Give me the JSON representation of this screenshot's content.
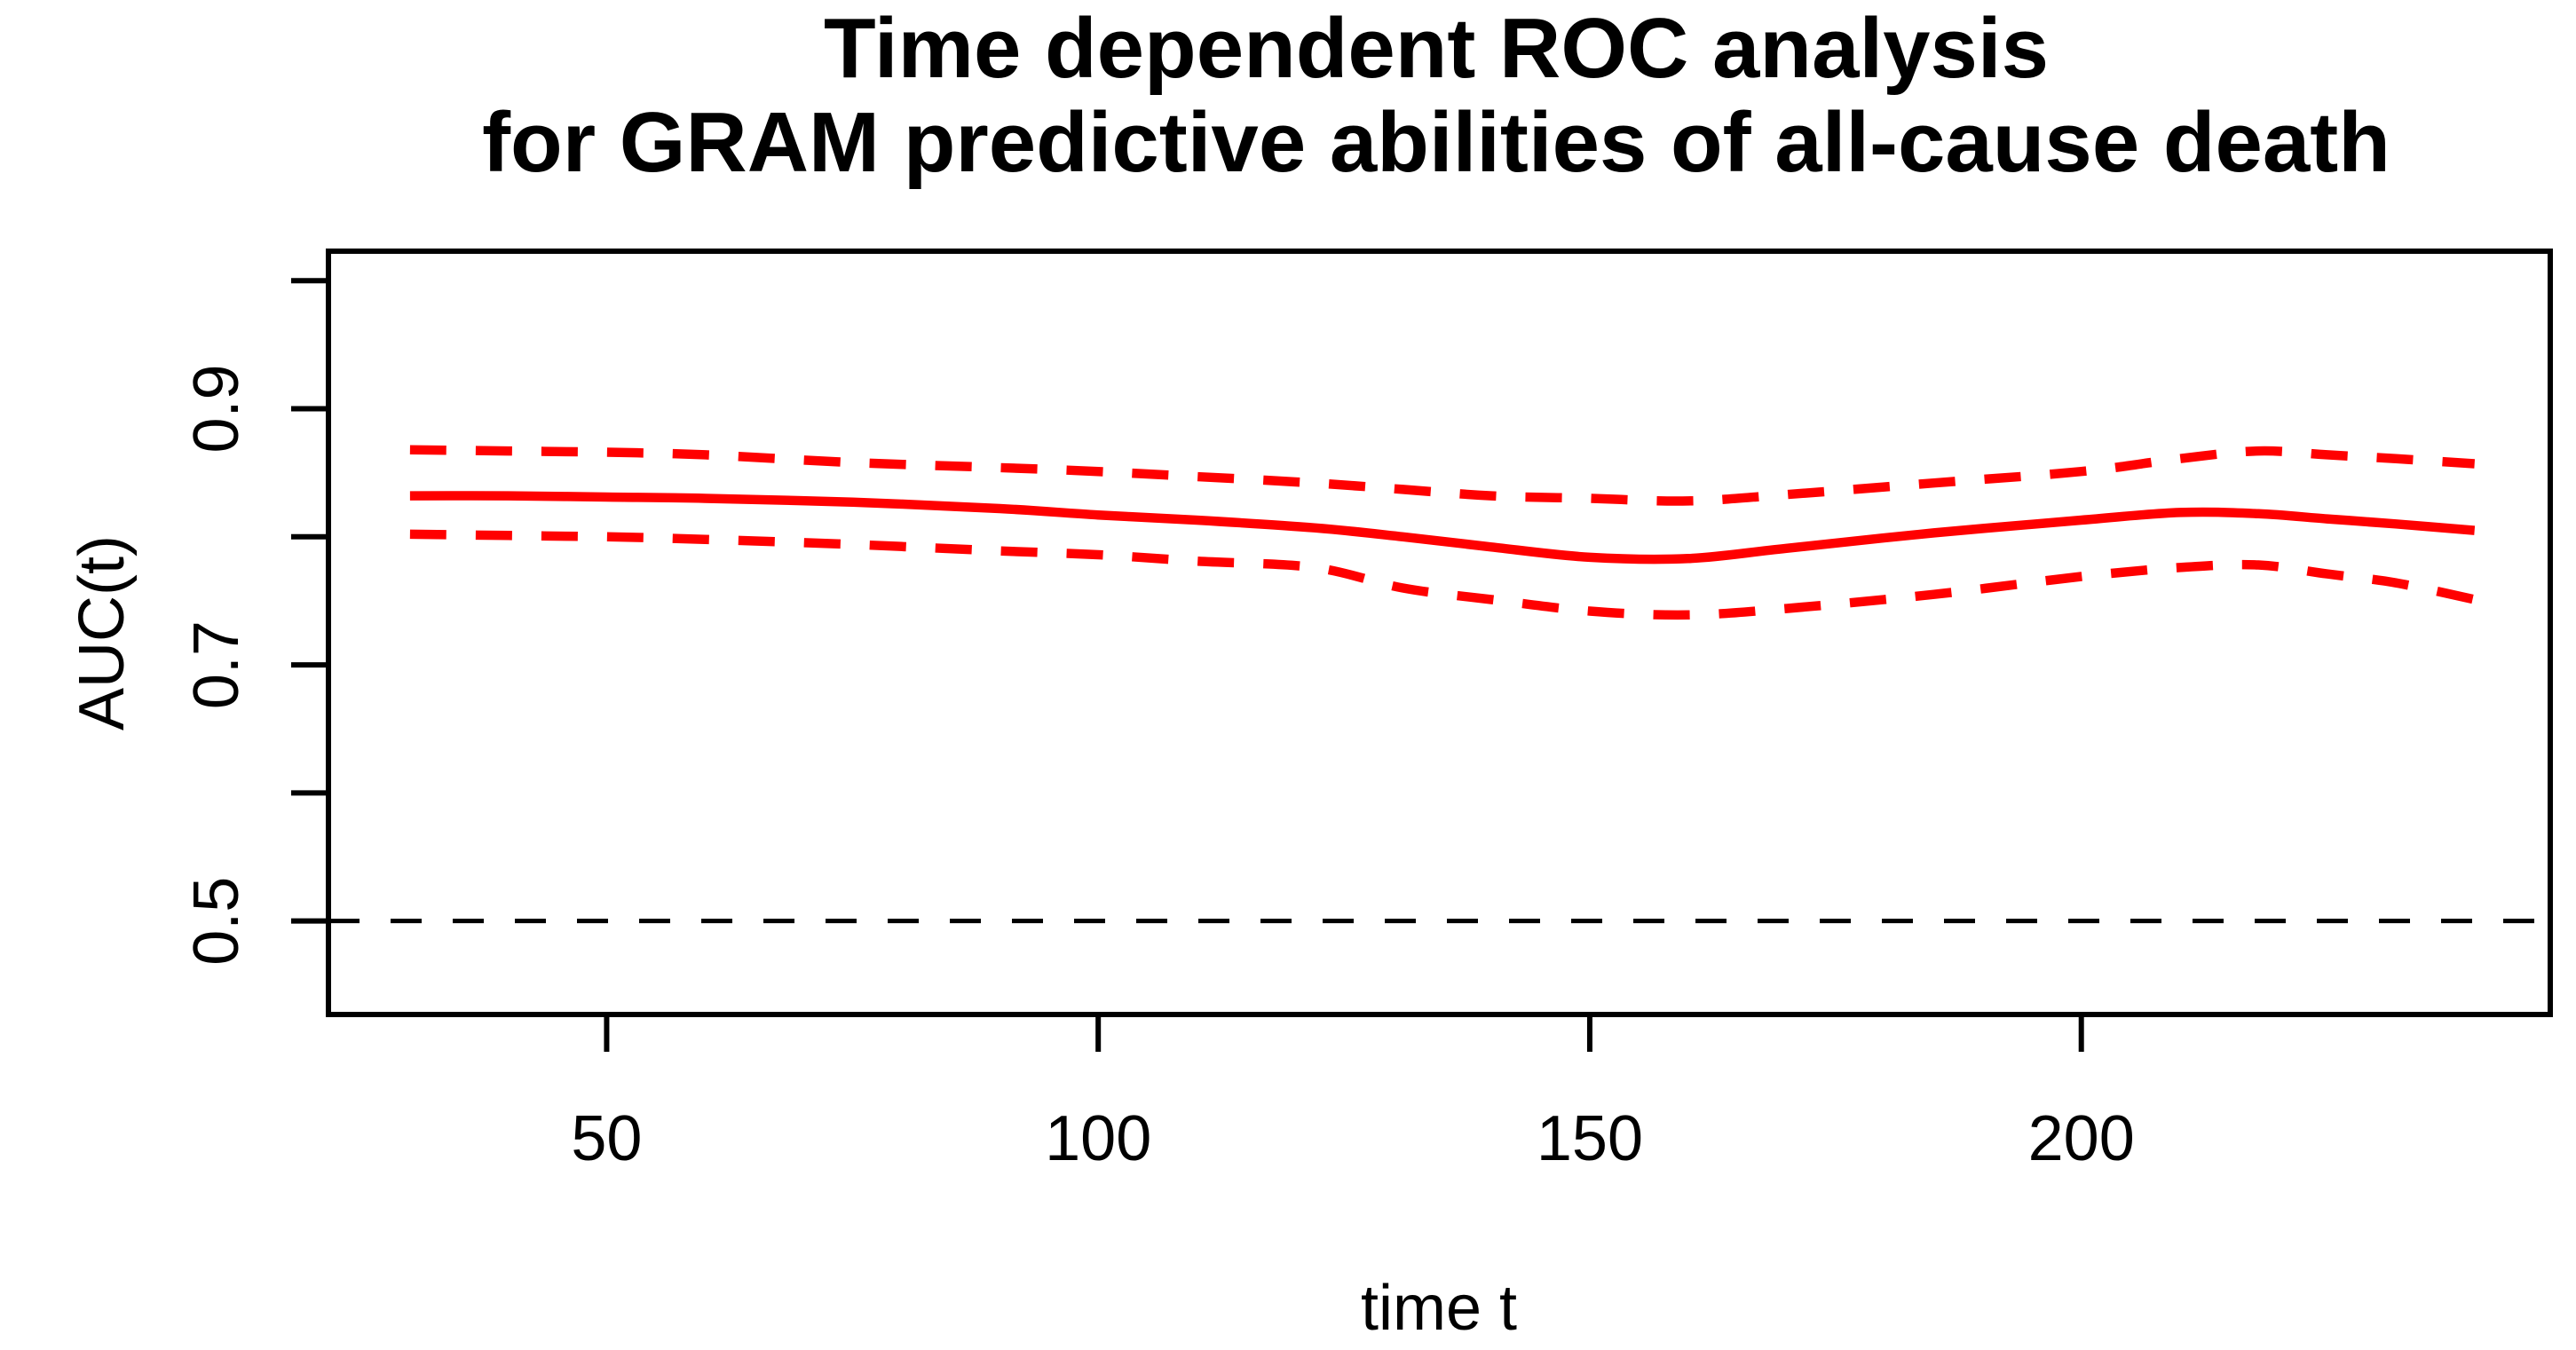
{
  "chart_data": {
    "type": "line",
    "title": "Time dependent ROC analysis\nfor GRAM predictive abilities of all-cause death",
    "title_lines": [
      "Time dependent ROC analysis",
      "for GRAM predictive abilities of all-cause death"
    ],
    "xlabel": "time t",
    "ylabel": "AUC(t)",
    "xlim": [
      21.7,
      247.7
    ],
    "ylim": [
      0.427,
      1.023
    ],
    "x_ticks": [
      50,
      100,
      150,
      200
    ],
    "x_tick_labels": [
      "50",
      "100",
      "150",
      "200"
    ],
    "y_ticks": [
      0.5,
      0.6,
      0.7,
      0.8,
      0.9,
      1.0
    ],
    "y_labeled_ticks": [
      0.5,
      0.7,
      0.9
    ],
    "y_tick_labels": [
      "0.5",
      "0.7",
      "0.9"
    ],
    "grid": false,
    "legend": "none",
    "axis_color": "#000000",
    "background_color": "#ffffff",
    "reference_line": {
      "y": 0.5,
      "style": "dashed",
      "color": "#000000"
    },
    "x": [
      30,
      40,
      50,
      60,
      75,
      90,
      100,
      110,
      122,
      131,
      140,
      150,
      160,
      170,
      185,
      200,
      210,
      218,
      225,
      232,
      240
    ],
    "series": [
      {
        "name": "AUC(t) estimate",
        "style": "solid",
        "color": "#ff0000",
        "values": [
          0.832,
          0.832,
          0.831,
          0.83,
          0.827,
          0.822,
          0.817,
          0.813,
          0.807,
          0.8,
          0.792,
          0.784,
          0.783,
          0.791,
          0.803,
          0.813,
          0.819,
          0.818,
          0.814,
          0.81,
          0.805
        ]
      },
      {
        "name": "upper confidence band",
        "style": "dashed",
        "color": "#ff0000",
        "values": [
          0.868,
          0.867,
          0.866,
          0.864,
          0.858,
          0.854,
          0.851,
          0.847,
          0.842,
          0.837,
          0.832,
          0.83,
          0.828,
          0.833,
          0.842,
          0.851,
          0.861,
          0.867,
          0.864,
          0.861,
          0.857
        ]
      },
      {
        "name": "lower confidence band",
        "style": "dashed",
        "color": "#ff0000",
        "values": [
          0.802,
          0.801,
          0.8,
          0.798,
          0.794,
          0.789,
          0.786,
          0.781,
          0.776,
          0.76,
          0.751,
          0.742,
          0.739,
          0.744,
          0.755,
          0.769,
          0.776,
          0.778,
          0.771,
          0.764,
          0.751
        ]
      }
    ]
  }
}
